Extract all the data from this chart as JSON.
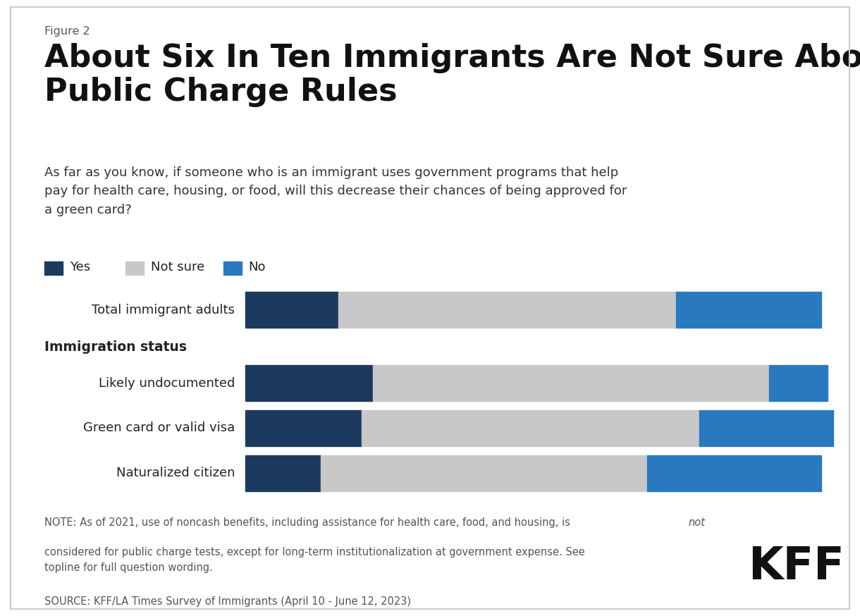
{
  "figure_label": "Figure 2",
  "title": "About Six In Ten Immigrants Are Not Sure About\nPublic Charge Rules",
  "subtitle": "As far as you know, if someone who is an immigrant uses government programs that help\npay for health care, housing, or food, will this decrease their chances of being approved for\na green card?",
  "legend": [
    "Yes",
    "Not sure",
    "No"
  ],
  "colors": {
    "yes": "#1c3a5e",
    "not_sure": "#c8c8c8",
    "no": "#2979bf"
  },
  "categories": [
    "Total immigrant adults",
    "Likely undocumented",
    "Green card or valid visa",
    "Naturalized citizen"
  ],
  "section_label": "Immigration status",
  "data": {
    "Total immigrant adults": {
      "yes": 16,
      "not_sure": 58,
      "no": 25
    },
    "Likely undocumented": {
      "yes": 22,
      "not_sure": 68,
      "no": 10
    },
    "Green card or valid visa": {
      "yes": 20,
      "not_sure": 58,
      "no": 23
    },
    "Naturalized citizen": {
      "yes": 13,
      "not_sure": 56,
      "no": 30
    }
  },
  "note_pre": "NOTE: As of 2021, use of noncash benefits, including assistance for health care, food, and housing, is ",
  "note_italic": "not",
  "note_post": "\nconsidered for public charge tests, except for long-term institutionalization at government expense. See\ntopline for full question wording.",
  "source_text": "SOURCE: KFF/LA Times Survey of Immigrants (April 10 - June 12, 2023)",
  "background_color": "#ffffff",
  "border_color": "#cccccc",
  "text_dark": "#222222",
  "text_gray": "#555555",
  "fig_label_color": "#555555",
  "title_color": "#111111",
  "subtitle_color": "#333333"
}
